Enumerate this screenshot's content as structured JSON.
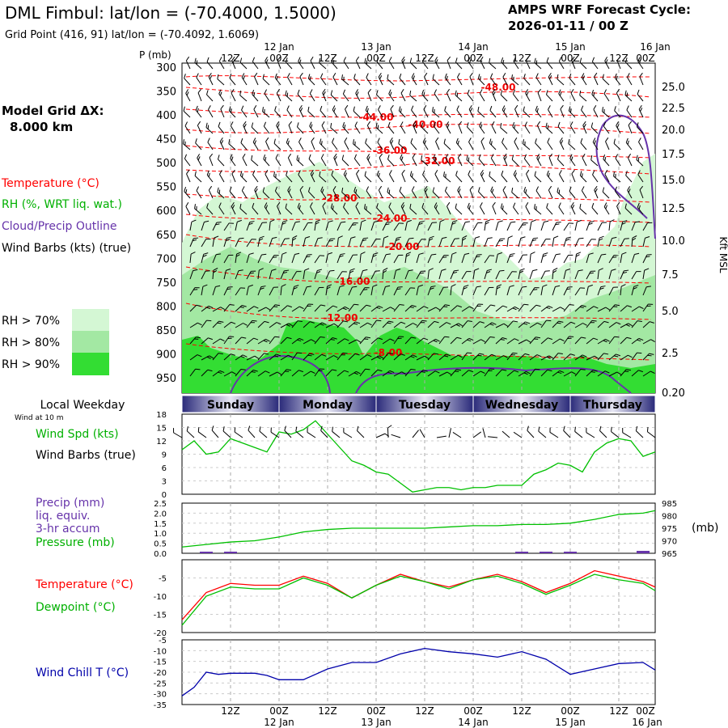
{
  "header": {
    "title": "DML Fimbul:  lat/lon = (-70.4000, 1.5000)",
    "subtitle": "Grid Point (416, 91) lat/lon = (-70.4092, 1.6069)",
    "cycle_line1": "AMPS WRF Forecast Cycle:",
    "cycle_line2": "2026-01-11 / 00  Z",
    "grid_label": "Model Grid ΔX:",
    "grid_value": "8.000 km"
  },
  "legend": {
    "temperature": "Temperature (°C)",
    "rh": "RH (%, WRT liq. wat.)",
    "cloud": "Cloud/Precip Outline",
    "wind_barbs": "Wind Barbs (kts) (true)",
    "rh70": "RH > 70%",
    "rh80": "RH > 80%",
    "rh90": "RH > 90%"
  },
  "time_axis": {
    "top_dates": [
      "12 Jan",
      "13 Jan",
      "14 Jan",
      "15 Jan",
      "16 Jan"
    ],
    "hour_labels": [
      "12Z",
      "00Z",
      "12Z",
      "00Z",
      "12Z",
      "00Z",
      "12Z",
      "00Z",
      "12Z",
      "00Z"
    ],
    "weekdays_title": "Local Weekday",
    "wind10m": "Wind at 10 m",
    "weekdays": [
      "Sunday",
      "Monday",
      "Tuesday",
      "Wednesday",
      "Thursday"
    ]
  },
  "panel_labels": {
    "p_axis": "P (mb)",
    "height_axis": "Kft MSL",
    "wind_spd": "Wind Spd (kts)",
    "wind_barbs": "Wind Barbs (true)",
    "precip1": "Precip (mm)",
    "precip2": "liq. equiv.",
    "precip3": "3-hr accum",
    "pressure": "Pressure (mb)",
    "pressure_unit": "(mb)",
    "temperature": "Temperature (°C)",
    "dewpoint": "Dewpoint (°C)",
    "windchill": "Wind Chill T (°C)"
  },
  "colors": {
    "temperature": "#ff0000",
    "rh": "#00c000",
    "rh70": "#d4f7d4",
    "rh80": "#a3e8a3",
    "rh90": "#33dd33",
    "cloud": "#6633aa",
    "windchill": "#0000aa",
    "weekday_bar": "#2a2a7a"
  },
  "chart_data": [
    {
      "type": "area",
      "name": "time-height cross section",
      "y_ticks_pressure": [
        300,
        350,
        400,
        450,
        500,
        550,
        600,
        650,
        700,
        750,
        800,
        850,
        900,
        950
      ],
      "y_ticks_kft": [
        "25.0",
        "22.5",
        "20.0",
        "17.5",
        "15.0",
        "12.5",
        "10.0",
        "7.5",
        "5.0",
        "2.5",
        "0.20"
      ],
      "temperature_labels": [
        "-48.00",
        "-44.00",
        "-40.00",
        "-36.00",
        "-32.00",
        "-28.00",
        "-24.00",
        "-20.00",
        "-16.00",
        "-12.00",
        "-8.00"
      ]
    },
    {
      "type": "line",
      "name": "wind speed",
      "ylim": [
        0,
        18
      ],
      "y_ticks": [
        0,
        3,
        6,
        9,
        12,
        15,
        18
      ],
      "x": [
        0,
        3,
        6,
        9,
        12,
        15,
        18,
        21,
        24,
        27,
        30,
        33,
        36,
        39,
        42,
        45,
        48,
        51,
        54,
        57,
        60,
        63,
        66,
        69,
        72,
        75,
        78,
        81,
        84,
        87,
        90,
        93,
        96,
        99,
        102,
        105,
        108,
        111,
        114,
        117
      ],
      "values": [
        10,
        12,
        9,
        9.5,
        12.5,
        11.5,
        10.5,
        9.5,
        14,
        13.5,
        14.5,
        16.5,
        13.5,
        10.5,
        7.5,
        6.5,
        5,
        4.5,
        2.5,
        0.5,
        1,
        1.5,
        1.5,
        1,
        1.5,
        1.5,
        2,
        2,
        2,
        4.5,
        5.5,
        7,
        6.5,
        5,
        9.5,
        11.5,
        12.5,
        12,
        8.5,
        9.5
      ]
    },
    {
      "type": "line",
      "name": "pressure and precipitation",
      "precip_ylim": [
        0,
        2.5
      ],
      "precip_ticks": [
        "0.0",
        "0.5",
        "1.0",
        "1.5",
        "2.0",
        "2.5"
      ],
      "pressure_ylim": [
        965,
        985
      ],
      "pressure_ticks": [
        965,
        970,
        975,
        980,
        985
      ],
      "x": [
        0,
        6,
        12,
        18,
        24,
        30,
        36,
        42,
        48,
        54,
        60,
        66,
        72,
        78,
        84,
        90,
        96,
        102,
        108,
        114,
        117
      ],
      "pressure": [
        967.5,
        968.5,
        969.5,
        970,
        971.5,
        973.5,
        974.5,
        975,
        975,
        975,
        975,
        975.5,
        976,
        976,
        976.5,
        976.5,
        977,
        978.5,
        980.5,
        981,
        982
      ],
      "precip": [
        0,
        0.05,
        0.05,
        0,
        0,
        0,
        0,
        0,
        0,
        0,
        0,
        0,
        0,
        0,
        0.04,
        0.05,
        0.04,
        0,
        0,
        0.12,
        0
      ]
    },
    {
      "type": "line",
      "name": "temperature and dewpoint",
      "ylim": [
        -20,
        0
      ],
      "y_ticks": [
        -20,
        -15,
        -10,
        -5
      ],
      "x": [
        0,
        6,
        12,
        18,
        24,
        30,
        36,
        42,
        48,
        54,
        60,
        66,
        72,
        78,
        84,
        90,
        96,
        102,
        108,
        114,
        117
      ],
      "series": [
        {
          "name": "Temperature",
          "values": [
            -16.5,
            -9,
            -6.5,
            -7,
            -7,
            -4.5,
            -6.5,
            -10.5,
            -7,
            -4,
            -6,
            -7.5,
            -5.5,
            -4,
            -6,
            -9,
            -6.5,
            -3,
            -4.5,
            -6,
            -7.5
          ]
        },
        {
          "name": "Dewpoint",
          "values": [
            -18,
            -10,
            -7.5,
            -8,
            -8,
            -5,
            -7,
            -10.5,
            -7,
            -4.5,
            -6,
            -8,
            -5.5,
            -4.5,
            -6.5,
            -9.5,
            -7,
            -4,
            -5.5,
            -6.5,
            -8.5
          ]
        }
      ]
    },
    {
      "type": "line",
      "name": "wind chill",
      "ylim": [
        -35,
        -5
      ],
      "y_ticks": [
        -35,
        -30,
        -25,
        -20,
        -15,
        -10,
        -5
      ],
      "x": [
        0,
        3,
        6,
        9,
        12,
        15,
        18,
        21,
        24,
        30,
        36,
        42,
        48,
        54,
        60,
        66,
        72,
        78,
        84,
        90,
        96,
        102,
        108,
        114,
        117
      ],
      "values": [
        -31,
        -27,
        -20,
        -21,
        -20.5,
        -20.5,
        -20.5,
        -21.5,
        -23.5,
        -23.5,
        -18.5,
        -15.5,
        -15.5,
        -11.5,
        -9,
        -10.5,
        -11.5,
        -13,
        -10.5,
        -14,
        -21,
        -18.5,
        -16,
        -15.5,
        -19
      ]
    }
  ]
}
